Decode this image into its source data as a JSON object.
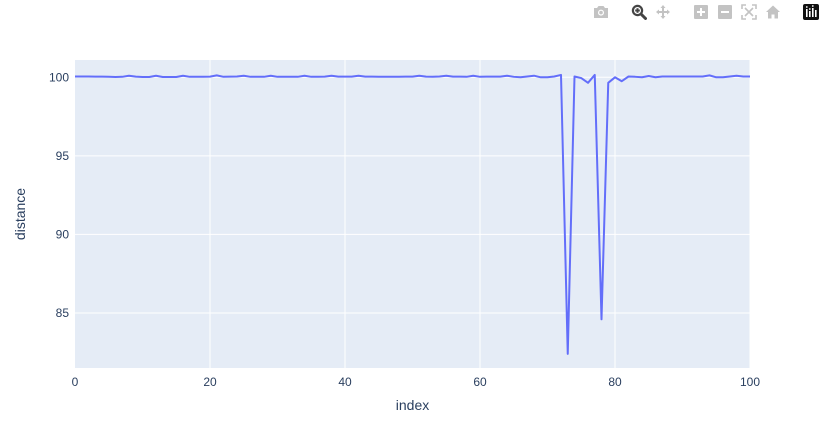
{
  "modebar": {
    "buttons": [
      {
        "name": "camera-icon",
        "label": "Download plot as a png"
      },
      {
        "name": "zoom-icon",
        "label": "Zoom"
      },
      {
        "name": "pan-icon",
        "label": "Pan"
      },
      {
        "name": "zoom-in-icon",
        "label": "Zoom in"
      },
      {
        "name": "zoom-out-icon",
        "label": "Zoom out"
      },
      {
        "name": "autoscale-icon",
        "label": "Autoscale"
      },
      {
        "name": "reset-axes-icon",
        "label": "Reset axes"
      },
      {
        "name": "plotly-logo-icon",
        "label": "Produced with Plotly"
      }
    ],
    "active": "zoom-icon",
    "icon_color": "#c3c3c3",
    "active_color": "#444444"
  },
  "chart_data": {
    "type": "line",
    "xlabel": "index",
    "ylabel": "distance",
    "xlim": [
      0,
      100
    ],
    "ylim": [
      81.5,
      101.1
    ],
    "xticks": [
      0,
      20,
      40,
      60,
      80,
      100
    ],
    "yticks": [
      85,
      90,
      95,
      100
    ],
    "grid": true,
    "legend": "none",
    "colors": {
      "line": "#636efa",
      "plot_bg": "#e5ecf6",
      "grid": "#ffffff",
      "text": "#2a3f5f"
    },
    "series": [
      {
        "x": [
          0,
          1,
          2,
          3,
          4,
          5,
          6,
          7,
          8,
          9,
          10,
          11,
          12,
          13,
          14,
          15,
          16,
          17,
          18,
          19,
          20,
          21,
          22,
          23,
          24,
          25,
          26,
          27,
          28,
          29,
          30,
          31,
          32,
          33,
          34,
          35,
          36,
          37,
          38,
          39,
          40,
          41,
          42,
          43,
          44,
          45,
          46,
          47,
          48,
          49,
          50,
          51,
          52,
          53,
          54,
          55,
          56,
          57,
          58,
          59,
          60,
          61,
          62,
          63,
          64,
          65,
          66,
          67,
          68,
          69,
          70,
          71,
          72,
          73,
          74,
          75,
          76,
          77,
          78,
          79,
          80,
          81,
          82,
          83,
          84,
          85,
          86,
          87,
          88,
          89,
          90,
          91,
          92,
          93,
          94,
          95,
          96,
          97,
          98,
          99,
          100
        ],
        "values": [
          100.05,
          100.05,
          100.05,
          100.04,
          100.04,
          100.03,
          100.02,
          100.03,
          100.1,
          100.04,
          100.02,
          100.02,
          100.1,
          100.02,
          100.02,
          100.02,
          100.1,
          100.03,
          100.03,
          100.03,
          100.04,
          100.12,
          100.03,
          100.04,
          100.05,
          100.1,
          100.03,
          100.03,
          100.03,
          100.1,
          100.03,
          100.03,
          100.03,
          100.03,
          100.1,
          100.03,
          100.03,
          100.04,
          100.1,
          100.04,
          100.04,
          100.04,
          100.1,
          100.04,
          100.04,
          100.03,
          100.03,
          100.03,
          100.03,
          100.04,
          100.04,
          100.1,
          100.04,
          100.03,
          100.05,
          100.1,
          100.04,
          100.04,
          100.03,
          100.1,
          100.03,
          100.04,
          100.04,
          100.04,
          100.1,
          100.03,
          100.0,
          100.05,
          100.1,
          100.0,
          100.0,
          100.05,
          100.15,
          82.4,
          100.05,
          99.95,
          99.65,
          100.15,
          84.6,
          99.65,
          100.0,
          99.75,
          100.05,
          100.03,
          100.0,
          100.08,
          100.0,
          100.05,
          100.05,
          100.05,
          100.05,
          100.05,
          100.05,
          100.05,
          100.12,
          100.0,
          100.0,
          100.05,
          100.1,
          100.05,
          100.05
        ]
      }
    ]
  }
}
